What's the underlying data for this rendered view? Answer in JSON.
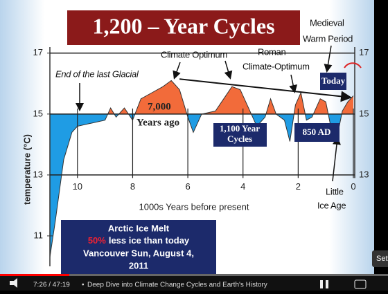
{
  "chart_data": {
    "type": "area",
    "title": "1,200 – Year Cycles",
    "y_label": "temperature (°C)",
    "x_label": "1000s Years before present",
    "x": [
      11.0,
      10.8,
      10.5,
      10.2,
      10.0,
      9.5,
      9.0,
      8.8,
      8.6,
      8.3,
      8.0,
      7.7,
      7.3,
      6.9,
      6.6,
      6.3,
      6.0,
      5.8,
      5.5,
      5.0,
      4.7,
      4.4,
      4.1,
      3.8,
      3.5,
      3.2,
      3.0,
      2.8,
      2.5,
      2.3,
      2.1,
      1.9,
      1.7,
      1.5,
      1.2,
      1.0,
      0.8,
      0.6,
      0.4,
      0.2,
      0.0
    ],
    "values": [
      10.3,
      11.5,
      13.5,
      14.4,
      14.6,
      14.7,
      14.8,
      15.2,
      14.9,
      15.2,
      14.8,
      15.5,
      15.7,
      15.9,
      16.1,
      15.8,
      14.9,
      14.4,
      15.0,
      15.1,
      15.5,
      15.9,
      15.8,
      15.2,
      14.6,
      14.9,
      15.5,
      15.0,
      14.8,
      14.1,
      15.3,
      15.7,
      14.8,
      14.9,
      15.5,
      15.4,
      14.5,
      14.2,
      15.1,
      15.4,
      15.6
    ],
    "baseline": 15,
    "above_color": "#f26b3a",
    "below_color": "#1f9ce4",
    "xlim": [
      11.1,
      -0.05
    ],
    "xticks": [
      10,
      8,
      6,
      4,
      2,
      0
    ],
    "ylim": [
      10,
      17.2
    ],
    "yticks": [
      11,
      13,
      15,
      17
    ],
    "y2lim": [
      10,
      17.2
    ],
    "y2ticks": [
      13,
      15,
      17
    ],
    "grid": true,
    "annotations": [
      "End of the last Glacial",
      "Climate Optimum",
      "Roman",
      "Climate-Optimum",
      "Medieval",
      "Warm Period",
      "7,000",
      "Years ago",
      "Little",
      "Ice Age",
      "Today",
      "1,100 Year",
      "Cycles",
      "850 AD",
      "Arctic Ice Melt",
      "50%",
      "less ice than today",
      "Vancouver Sun, August 4,",
      "2011"
    ]
  },
  "player": {
    "time": "7:26 / 47:19",
    "chapter": "Deep Dive into Climate Change Cycles and Earth's History",
    "tooltip": "Sett"
  }
}
